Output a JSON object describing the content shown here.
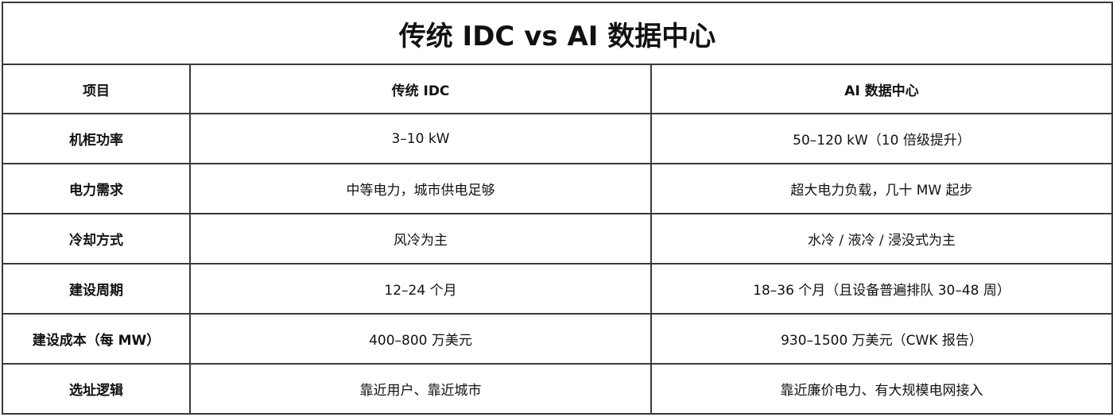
{
  "title": "传统 IDC vs AI 数据中心",
  "headers": [
    "项目",
    "传统 IDC",
    "AI 数据中心"
  ],
  "rows": [
    {
      "item": "机柜功率",
      "traditional": "3–10 kW",
      "ai": "50–120 kW（10 倍级提升）"
    },
    {
      "item": "电力需求",
      "traditional": "中等电力，城市供电足够",
      "ai": "超大电力负载，几十 MW 起步"
    },
    {
      "item": "冷却方式",
      "traditional": "风冷为主",
      "ai": "水冷 / 液冷 / 浸没式为主"
    },
    {
      "item": "建设周期",
      "traditional": "12–24 个月",
      "ai": "18–36 个月（且设备普遍排队 30–48 周）"
    },
    {
      "item": "建设成本（每 MW）",
      "traditional": "400–800 万美元",
      "ai": "930–1500 万美元（CWK 报告）"
    },
    {
      "item": "选址逻辑",
      "traditional": "靠近用户、靠近城市",
      "ai": "靠近廉价电力、有大规模电网接入"
    }
  ]
}
